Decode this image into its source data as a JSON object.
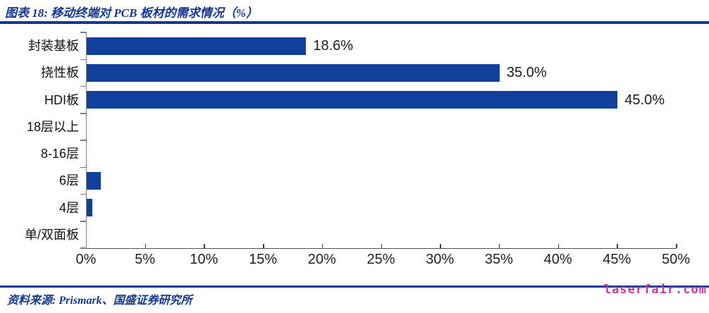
{
  "header": {
    "title": "图表 18:  移动终端对 PCB 板材的需求情况（%）"
  },
  "chart_data": {
    "type": "bar",
    "orientation": "horizontal",
    "title": "移动终端对 PCB 板材的需求情况（%）",
    "categories": [
      "封装基板",
      "挠性板",
      "HDI板",
      "18层以上",
      "8-16层",
      "6层",
      "4层",
      "单/双面板"
    ],
    "values": [
      18.6,
      35.0,
      45.0,
      0,
      0,
      1.2,
      0.5,
      0
    ],
    "data_labels": [
      "18.6%",
      "35.0%",
      "45.0%",
      "",
      "",
      "",
      "",
      ""
    ],
    "x_ticks": [
      "0%",
      "5%",
      "10%",
      "15%",
      "20%",
      "25%",
      "30%",
      "35%",
      "40%",
      "45%",
      "50%"
    ],
    "xlim": [
      0,
      50
    ],
    "xlabel": "",
    "ylabel": "",
    "grid": "off",
    "legend": "none",
    "bar_color": "#10409C"
  },
  "footer": {
    "source": "资料来源: Prismark、国盛证券研究所",
    "watermark": "laserfair.com"
  },
  "colors": {
    "bar_blue": "#10409C",
    "accent_rule_blue": "#0C3B94",
    "title_text_blue": "#16388F",
    "watermark_pink": "#C03C9E"
  }
}
